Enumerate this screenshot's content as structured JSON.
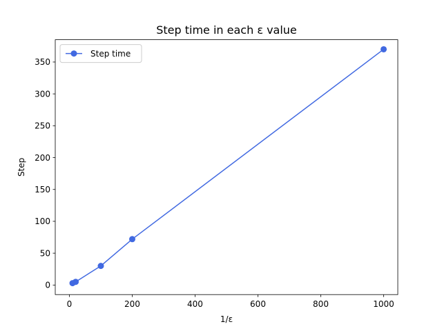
{
  "chart_data": {
    "type": "line",
    "title": "Step time in each ε value",
    "xlabel": "1/ε",
    "ylabel": "Step",
    "xlim": [
      -45,
      1045
    ],
    "ylim": [
      -15,
      385
    ],
    "xticks": [
      0,
      200,
      400,
      600,
      800,
      1000
    ],
    "yticks": [
      0,
      50,
      100,
      150,
      200,
      250,
      300,
      350
    ],
    "grid": false,
    "legend_position": "top-left",
    "series": [
      {
        "name": "Step time",
        "color": "#4169e1",
        "marker": "circle",
        "x": [
          10,
          20,
          100,
          200,
          1000
        ],
        "y": [
          3,
          5,
          30,
          72,
          370
        ]
      }
    ]
  }
}
